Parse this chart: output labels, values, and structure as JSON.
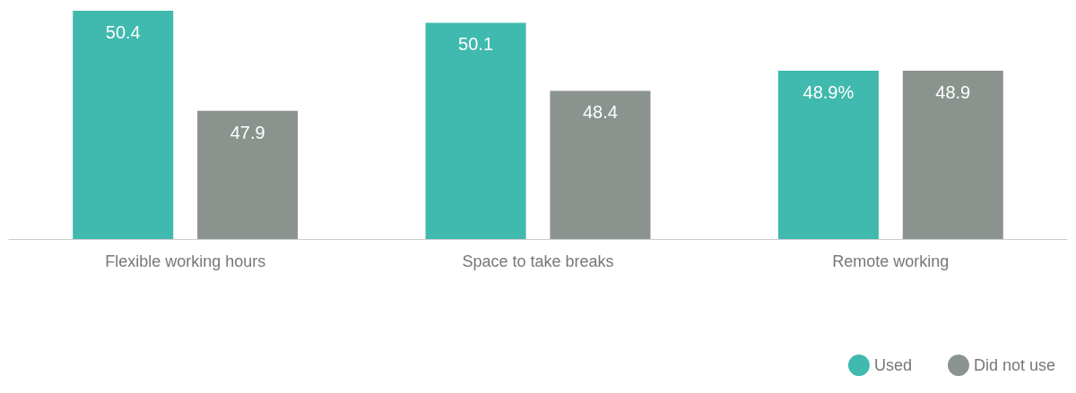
{
  "chart_data": {
    "type": "bar",
    "categories": [
      "Flexible working hours",
      "Space to take breaks",
      "Remote working"
    ],
    "series": [
      {
        "name": "Used",
        "color": "#40b9ae",
        "values": [
          50.4,
          50.1,
          48.9
        ],
        "value_labels": [
          "50.4",
          "50.1",
          "48.9%"
        ]
      },
      {
        "name": "Did not use",
        "color": "#8a938d",
        "values": [
          47.9,
          48.4,
          48.9
        ],
        "value_labels": [
          "47.9",
          "48.4",
          "48.9"
        ]
      }
    ],
    "ylim": [
      44.7,
      50.4
    ],
    "tick_labels": "x",
    "legend": "bottom right"
  }
}
